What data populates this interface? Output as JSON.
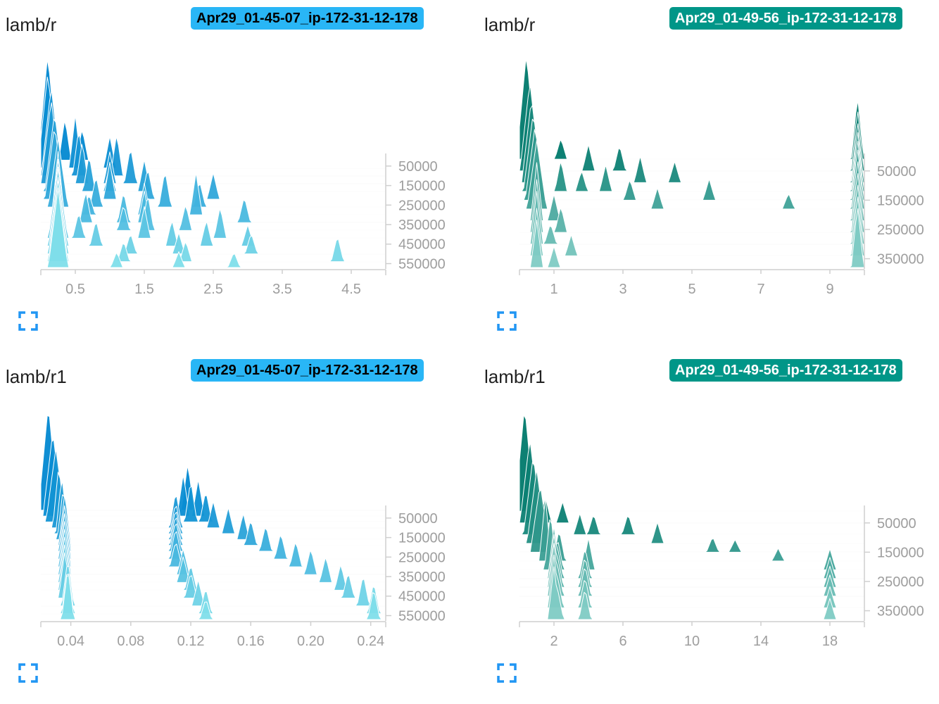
{
  "charts": [
    {
      "title": "lamb/r",
      "run": "Apr29_01-45-07_ip-172-31-12-178",
      "badge_bg": "#29b6f6",
      "badge_fg": "#000000",
      "color_dark": "#0288d1",
      "color_light": "#80deea",
      "expand_icon": "fullscreen-icon"
    },
    {
      "title": "lamb/r",
      "run": "Apr29_01-49-56_ip-172-31-12-178",
      "badge_bg": "#009688",
      "badge_fg": "#ffffff",
      "color_dark": "#00796b",
      "color_light": "#80cbc4",
      "expand_icon": "fullscreen-icon"
    },
    {
      "title": "lamb/r1",
      "run": "Apr29_01-45-07_ip-172-31-12-178",
      "badge_bg": "#29b6f6",
      "badge_fg": "#000000",
      "color_dark": "#0288d1",
      "color_light": "#80deea",
      "expand_icon": "fullscreen-icon"
    },
    {
      "title": "lamb/r1",
      "run": "Apr29_01-49-56_ip-172-31-12-178",
      "badge_bg": "#009688",
      "badge_fg": "#ffffff",
      "color_dark": "#00796b",
      "color_light": "#80cbc4",
      "expand_icon": "fullscreen-icon"
    }
  ],
  "chart_data": [
    {
      "type": "histogram-ridgeline",
      "title": "lamb/r",
      "xlim": [
        0,
        5
      ],
      "x_ticks": [
        0.5,
        1.5,
        2.5,
        3.5,
        4.5
      ],
      "y_ticks": [
        50000,
        150000,
        250000,
        350000,
        450000,
        550000
      ],
      "ylim": [
        0,
        570000
      ],
      "steps": [
        {
          "step": 20000,
          "peaks": [
            [
              0.1,
              1.0
            ],
            [
              0.35,
              0.4
            ],
            [
              0.6,
              0.3
            ]
          ]
        },
        {
          "step": 60000,
          "peaks": [
            [
              0.1,
              0.9
            ],
            [
              0.5,
              0.5
            ],
            [
              1.0,
              0.3
            ]
          ]
        },
        {
          "step": 100000,
          "peaks": [
            [
              0.15,
              0.85
            ],
            [
              0.55,
              0.45
            ],
            [
              1.1,
              0.4
            ]
          ]
        },
        {
          "step": 140000,
          "peaks": [
            [
              0.15,
              0.8
            ],
            [
              0.6,
              0.4
            ],
            [
              1.3,
              0.35
            ],
            [
              1.0,
              0.3
            ]
          ]
        },
        {
          "step": 180000,
          "peaks": [
            [
              0.2,
              0.75
            ],
            [
              0.7,
              0.35
            ],
            [
              1.5,
              0.3
            ],
            [
              1.0,
              0.25
            ]
          ]
        },
        {
          "step": 220000,
          "peaks": [
            [
              0.2,
              0.7
            ],
            [
              1.0,
              0.35
            ],
            [
              1.55,
              0.3
            ],
            [
              2.5,
              0.25
            ]
          ]
        },
        {
          "step": 260000,
          "peaks": [
            [
              0.25,
              0.65
            ],
            [
              0.8,
              0.3
            ],
            [
              1.8,
              0.35
            ],
            [
              2.3,
              0.25
            ]
          ]
        },
        {
          "step": 300000,
          "peaks": [
            [
              0.25,
              0.6
            ],
            [
              1.5,
              0.3
            ],
            [
              2.25,
              0.4
            ],
            [
              0.7,
              0.2
            ]
          ]
        },
        {
          "step": 340000,
          "peaks": [
            [
              0.25,
              0.6
            ],
            [
              0.65,
              0.3
            ],
            [
              1.2,
              0.3
            ],
            [
              1.5,
              0.3
            ],
            [
              2.95,
              0.25
            ]
          ]
        },
        {
          "step": 380000,
          "peaks": [
            [
              0.25,
              0.6
            ],
            [
              1.2,
              0.25
            ],
            [
              1.55,
              0.35
            ],
            [
              2.1,
              0.25
            ]
          ]
        },
        {
          "step": 420000,
          "peaks": [
            [
              0.25,
              0.65
            ],
            [
              0.55,
              0.25
            ],
            [
              1.5,
              0.3
            ],
            [
              2.6,
              0.3
            ]
          ]
        },
        {
          "step": 460000,
          "peaks": [
            [
              0.25,
              0.65
            ],
            [
              0.8,
              0.25
            ],
            [
              1.9,
              0.25
            ],
            [
              2.4,
              0.25
            ],
            [
              3.0,
              0.2
            ]
          ]
        },
        {
          "step": 500000,
          "peaks": [
            [
              0.25,
              0.7
            ],
            [
              1.3,
              0.2
            ],
            [
              2.0,
              0.2
            ],
            [
              3.05,
              0.2
            ]
          ]
        },
        {
          "step": 540000,
          "peaks": [
            [
              0.25,
              0.7
            ],
            [
              1.2,
              0.2
            ],
            [
              2.1,
              0.2
            ],
            [
              4.3,
              0.25
            ]
          ]
        },
        {
          "step": 570000,
          "peaks": [
            [
              0.25,
              0.75
            ],
            [
              1.1,
              0.15
            ],
            [
              2.0,
              0.15
            ],
            [
              2.8,
              0.15
            ]
          ]
        }
      ]
    },
    {
      "type": "histogram-ridgeline",
      "title": "lamb/r",
      "xlim": [
        0,
        10
      ],
      "x_ticks": [
        1,
        3,
        5,
        7,
        9
      ],
      "y_ticks": [
        50000,
        150000,
        250000,
        350000
      ],
      "ylim": [
        0,
        380000
      ],
      "steps": [
        {
          "step": 10000,
          "peaks": [
            [
              0.2,
              1.0
            ],
            [
              1.2,
              0.2
            ],
            [
              9.8,
              0.6
            ]
          ]
        },
        {
          "step": 50000,
          "peaks": [
            [
              0.3,
              0.85
            ],
            [
              2.0,
              0.25
            ],
            [
              2.9,
              0.25
            ],
            [
              9.8,
              0.6
            ]
          ]
        },
        {
          "step": 90000,
          "peaks": [
            [
              0.35,
              0.8
            ],
            [
              3.5,
              0.25
            ],
            [
              4.5,
              0.2
            ],
            [
              9.8,
              0.6
            ]
          ]
        },
        {
          "step": 120000,
          "peaks": [
            [
              0.4,
              0.75
            ],
            [
              1.2,
              0.3
            ],
            [
              1.8,
              0.2
            ],
            [
              2.5,
              0.25
            ],
            [
              9.8,
              0.6
            ]
          ]
        },
        {
          "step": 150000,
          "peaks": [
            [
              0.45,
              0.7
            ],
            [
              3.2,
              0.2
            ],
            [
              5.5,
              0.2
            ],
            [
              9.8,
              0.6
            ]
          ]
        },
        {
          "step": 180000,
          "peaks": [
            [
              0.5,
              0.65
            ],
            [
              4.0,
              0.2
            ],
            [
              7.8,
              0.15
            ],
            [
              9.8,
              0.6
            ]
          ]
        },
        {
          "step": 220000,
          "peaks": [
            [
              0.5,
              0.55
            ],
            [
              1.0,
              0.25
            ],
            [
              9.8,
              0.6
            ]
          ]
        },
        {
          "step": 260000,
          "peaks": [
            [
              0.5,
              0.5
            ],
            [
              1.2,
              0.25
            ],
            [
              9.8,
              0.6
            ]
          ]
        },
        {
          "step": 300000,
          "peaks": [
            [
              0.5,
              0.5
            ],
            [
              0.9,
              0.2
            ],
            [
              9.8,
              0.6
            ]
          ]
        },
        {
          "step": 340000,
          "peaks": [
            [
              0.5,
              0.45
            ],
            [
              1.5,
              0.2
            ],
            [
              9.8,
              0.6
            ]
          ]
        },
        {
          "step": 380000,
          "peaks": [
            [
              0.5,
              0.45
            ],
            [
              1.0,
              0.2
            ],
            [
              9.8,
              0.6
            ]
          ]
        }
      ]
    },
    {
      "type": "histogram-ridgeline",
      "title": "lamb/r1",
      "xlim": [
        0.02,
        0.25
      ],
      "x_ticks": [
        0.04,
        0.08,
        0.12,
        0.16,
        0.2,
        0.24
      ],
      "y_ticks": [
        50000,
        150000,
        250000,
        350000,
        450000,
        550000
      ],
      "ylim": [
        0,
        570000
      ],
      "steps": [
        {
          "step": 10000,
          "peaks": [
            [
              0.025,
              1.0
            ],
            [
              0.118,
              0.45
            ]
          ]
        },
        {
          "step": 40000,
          "peaks": [
            [
              0.028,
              0.8
            ],
            [
              0.115,
              0.4
            ],
            [
              0.125,
              0.35
            ]
          ]
        },
        {
          "step": 70000,
          "peaks": [
            [
              0.03,
              0.7
            ],
            [
              0.12,
              0.4
            ],
            [
              0.13,
              0.3
            ]
          ]
        },
        {
          "step": 100000,
          "peaks": [
            [
              0.032,
              0.6
            ],
            [
              0.11,
              0.35
            ],
            [
              0.135,
              0.25
            ]
          ]
        },
        {
          "step": 130000,
          "peaks": [
            [
              0.034,
              0.55
            ],
            [
              0.11,
              0.3
            ],
            [
              0.145,
              0.25
            ]
          ]
        },
        {
          "step": 160000,
          "peaks": [
            [
              0.035,
              0.5
            ],
            [
              0.11,
              0.3
            ],
            [
              0.155,
              0.25
            ]
          ]
        },
        {
          "step": 190000,
          "peaks": [
            [
              0.036,
              0.5
            ],
            [
              0.11,
              0.3
            ],
            [
              0.16,
              0.25
            ]
          ]
        },
        {
          "step": 220000,
          "peaks": [
            [
              0.036,
              0.45
            ],
            [
              0.11,
              0.3
            ],
            [
              0.17,
              0.25
            ]
          ]
        },
        {
          "step": 260000,
          "peaks": [
            [
              0.036,
              0.45
            ],
            [
              0.11,
              0.3
            ],
            [
              0.18,
              0.25
            ]
          ]
        },
        {
          "step": 300000,
          "peaks": [
            [
              0.036,
              0.45
            ],
            [
              0.11,
              0.25
            ],
            [
              0.19,
              0.25
            ]
          ]
        },
        {
          "step": 340000,
          "peaks": [
            [
              0.036,
              0.45
            ],
            [
              0.115,
              0.25
            ],
            [
              0.2,
              0.25
            ]
          ]
        },
        {
          "step": 380000,
          "peaks": [
            [
              0.036,
              0.45
            ],
            [
              0.115,
              0.25
            ],
            [
              0.21,
              0.25
            ]
          ]
        },
        {
          "step": 420000,
          "peaks": [
            [
              0.036,
              0.45
            ],
            [
              0.12,
              0.25
            ],
            [
              0.22,
              0.25
            ]
          ]
        },
        {
          "step": 460000,
          "peaks": [
            [
              0.036,
              0.45
            ],
            [
              0.12,
              0.25
            ],
            [
              0.225,
              0.25
            ]
          ]
        },
        {
          "step": 500000,
          "peaks": [
            [
              0.038,
              0.45
            ],
            [
              0.125,
              0.25
            ],
            [
              0.235,
              0.3
            ]
          ]
        },
        {
          "step": 540000,
          "peaks": [
            [
              0.038,
              0.45
            ],
            [
              0.13,
              0.25
            ],
            [
              0.242,
              0.3
            ]
          ]
        },
        {
          "step": 570000,
          "peaks": [
            [
              0.038,
              0.5
            ],
            [
              0.13,
              0.2
            ],
            [
              0.242,
              0.3
            ]
          ]
        }
      ]
    },
    {
      "type": "histogram-ridgeline",
      "title": "lamb/r1",
      "xlim": [
        0,
        20
      ],
      "x_ticks": [
        2,
        6,
        10,
        14,
        18
      ],
      "y_ticks": [
        50000,
        150000,
        250000,
        350000
      ],
      "ylim": [
        0,
        380000
      ],
      "steps": [
        {
          "step": 10000,
          "peaks": [
            [
              0.3,
              1.0
            ]
          ]
        },
        {
          "step": 50000,
          "peaks": [
            [
              0.6,
              0.8
            ],
            [
              1.5,
              0.25
            ],
            [
              2.5,
              0.2
            ]
          ]
        },
        {
          "step": 90000,
          "peaks": [
            [
              0.8,
              0.75
            ],
            [
              3.5,
              0.2
            ],
            [
              4.3,
              0.2
            ],
            [
              6.3,
              0.2
            ]
          ]
        },
        {
          "step": 120000,
          "peaks": [
            [
              1.0,
              0.7
            ],
            [
              8.0,
              0.2
            ]
          ]
        },
        {
          "step": 150000,
          "peaks": [
            [
              1.2,
              0.65
            ],
            [
              11.2,
              0.15
            ],
            [
              12.5,
              0.12
            ]
          ]
        },
        {
          "step": 180000,
          "peaks": [
            [
              1.5,
              0.6
            ],
            [
              2.3,
              0.3
            ],
            [
              15.0,
              0.12
            ]
          ]
        },
        {
          "step": 210000,
          "peaks": [
            [
              1.8,
              0.55
            ],
            [
              2.2,
              0.3
            ],
            [
              4.0,
              0.3
            ],
            [
              18.0,
              0.2
            ]
          ]
        },
        {
          "step": 240000,
          "peaks": [
            [
              2.0,
              0.5
            ],
            [
              2.2,
              0.3
            ],
            [
              3.8,
              0.3
            ],
            [
              18.0,
              0.2
            ]
          ]
        },
        {
          "step": 270000,
          "peaks": [
            [
              2.0,
              0.5
            ],
            [
              2.2,
              0.3
            ],
            [
              3.8,
              0.3
            ],
            [
              18.0,
              0.2
            ]
          ]
        },
        {
          "step": 300000,
          "peaks": [
            [
              2.0,
              0.5
            ],
            [
              2.2,
              0.3
            ],
            [
              3.8,
              0.3
            ],
            [
              18.0,
              0.2
            ]
          ]
        },
        {
          "step": 340000,
          "peaks": [
            [
              2.0,
              0.5
            ],
            [
              2.2,
              0.3
            ],
            [
              3.8,
              0.3
            ],
            [
              18.0,
              0.2
            ]
          ]
        },
        {
          "step": 380000,
          "peaks": [
            [
              2.0,
              0.5
            ],
            [
              2.2,
              0.3
            ],
            [
              3.8,
              0.3
            ],
            [
              18.0,
              0.2
            ]
          ]
        }
      ]
    }
  ]
}
